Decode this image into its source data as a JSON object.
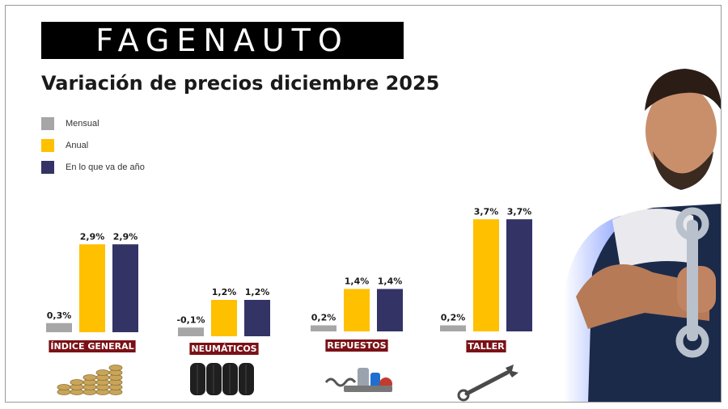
{
  "brand": {
    "logo_text": "FAGENAUTO"
  },
  "colors": {
    "mensual": "#a6a6a6",
    "anual": "#ffc000",
    "ytd": "#333366",
    "label_bg": "#7a1116",
    "label_text": "#ffffff"
  },
  "chart_data": {
    "type": "bar",
    "title": "Variación de precios diciembre 2025",
    "categories": [
      "ÍNDICE GENERAL",
      "NEUMÁTICOS",
      "REPUESTOS",
      "TALLER"
    ],
    "series": [
      {
        "name": "Mensual",
        "values": [
          0.3,
          -0.1,
          0.2,
          0.2
        ],
        "labels": [
          "0,3%",
          "-0,1%",
          "0,2%",
          "0,2%"
        ]
      },
      {
        "name": "Anual",
        "values": [
          2.9,
          1.2,
          1.4,
          3.7
        ],
        "labels": [
          "2,9%",
          "1,2%",
          "1,4%",
          "3,7%"
        ]
      },
      {
        "name": "En lo que va de año",
        "values": [
          2.9,
          1.2,
          1.4,
          3.7
        ],
        "labels": [
          "2,9%",
          "1,2%",
          "1,4%",
          "3,7%"
        ]
      }
    ],
    "legend_position": "top-left",
    "grid": false,
    "icons": [
      "coin-stacks-icon",
      "tires-icon",
      "auto-parts-icon",
      "wrench-icon"
    ]
  }
}
